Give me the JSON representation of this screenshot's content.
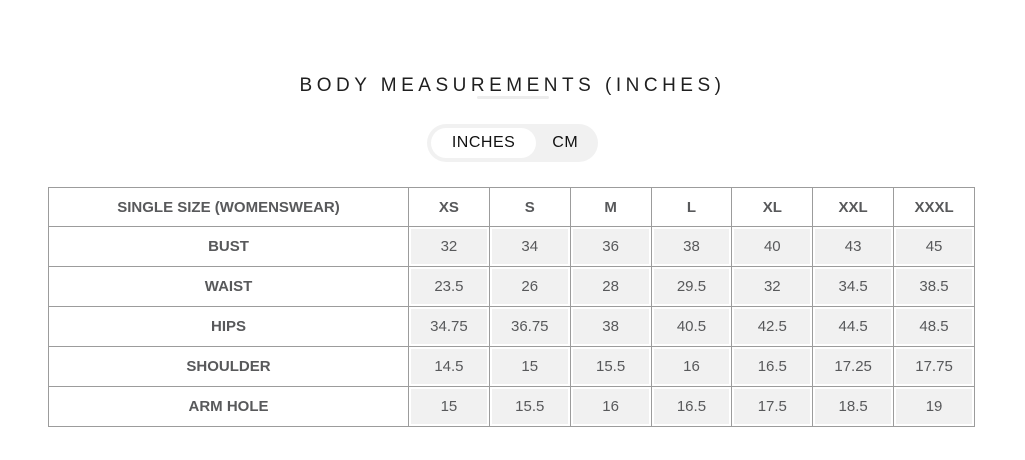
{
  "title": "BODY MEASUREMENTS (INCHES)",
  "unit_toggle": {
    "options": [
      {
        "id": "inches",
        "label": "INCHES",
        "selected": true
      },
      {
        "id": "cm",
        "label": "CM",
        "selected": false
      }
    ]
  },
  "table": {
    "header": [
      "SINGLE SIZE (WOMENSWEAR)",
      "XS",
      "S",
      "M",
      "L",
      "XL",
      "XXL",
      "XXXL"
    ],
    "rows": [
      {
        "label": "BUST",
        "values": [
          "32",
          "34",
          "36",
          "38",
          "40",
          "43",
          "45"
        ]
      },
      {
        "label": "WAIST",
        "values": [
          "23.5",
          "26",
          "28",
          "29.5",
          "32",
          "34.5",
          "38.5"
        ]
      },
      {
        "label": "HIPS",
        "values": [
          "34.75",
          "36.75",
          "38",
          "40.5",
          "42.5",
          "44.5",
          "48.5"
        ]
      },
      {
        "label": "SHOULDER",
        "values": [
          "14.5",
          "15",
          "15.5",
          "16",
          "16.5",
          "17.25",
          "17.75"
        ]
      },
      {
        "label": "ARM HOLE",
        "values": [
          "15",
          "15.5",
          "16",
          "16.5",
          "17.5",
          "18.5",
          "19"
        ]
      }
    ]
  },
  "colors": {
    "border_color": "#9c9c9c",
    "cell_bg": "#f1f1f1",
    "table_text": "#58595b",
    "title_color": "#1f1f1f",
    "toggle_bg": "#f1f1f1",
    "toggle_selected_bg": "#ffffff",
    "toggle_text": "#111111",
    "handle_color": "#ededed"
  }
}
